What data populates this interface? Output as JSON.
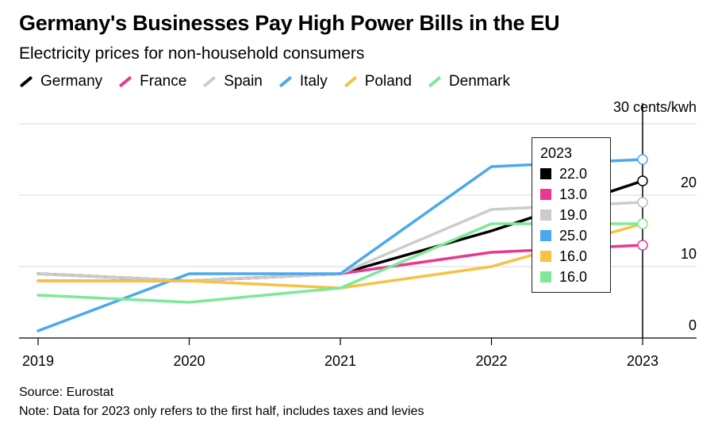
{
  "header": {
    "title": "Germany's Businesses Pay High Power Bills in the EU",
    "subtitle": "Electricity prices for non-household consumers"
  },
  "footer": {
    "source": "Source: Eurostat",
    "note": "Note: Data for 2023 only refers to the first half, includes taxes and levies"
  },
  "tooltip": {
    "year": "2023",
    "rows": [
      {
        "label": "22.0",
        "color": "#000000"
      },
      {
        "label": "13.0",
        "color": "#e8398f"
      },
      {
        "label": "19.0",
        "color": "#cccccc"
      },
      {
        "label": "25.0",
        "color": "#4aa8f0"
      },
      {
        "label": "16.0",
        "color": "#f7c244"
      },
      {
        "label": "16.0",
        "color": "#7ee898"
      }
    ]
  },
  "chart_data": {
    "type": "line",
    "title": "Germany's Businesses Pay High Power Bills in the EU",
    "subtitle": "Electricity prices for non-household consumers",
    "x": [
      "2019",
      "2020",
      "2021",
      "2022",
      "2023"
    ],
    "y_unit_label": "30 cents/kwh",
    "yticks": [
      "0",
      "10",
      "20"
    ],
    "ylim": [
      0,
      30
    ],
    "grid": true,
    "legend_position": "top-left",
    "series": [
      {
        "name": "Germany",
        "color": "#000000",
        "values": [
          9.0,
          8.0,
          9.0,
          15.0,
          22.0
        ]
      },
      {
        "name": "France",
        "color": "#e8398f",
        "values": [
          8.0,
          8.0,
          9.0,
          12.0,
          13.0
        ]
      },
      {
        "name": "Spain",
        "color": "#cccccc",
        "values": [
          9.0,
          8.0,
          9.0,
          18.0,
          19.0
        ]
      },
      {
        "name": "Italy",
        "color": "#4aa8f0",
        "values": [
          1.0,
          9.0,
          9.0,
          24.0,
          25.0
        ]
      },
      {
        "name": "Poland",
        "color": "#f7c244",
        "values": [
          8.0,
          8.0,
          7.0,
          10.0,
          16.0
        ]
      },
      {
        "name": "Denmark",
        "color": "#7ee898",
        "values": [
          6.0,
          5.0,
          7.0,
          16.0,
          16.0
        ]
      }
    ]
  }
}
